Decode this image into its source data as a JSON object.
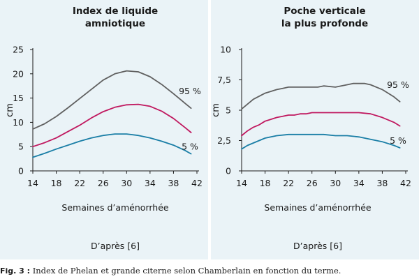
{
  "caption": {
    "figure_label": "Fig. 3 :",
    "text": "Index de Phelan et grande citerne selon Chamberlain en fonction du terme."
  },
  "colors": {
    "panel_bg": "#eaf3f7",
    "p95": "#606060",
    "p50": "#c0185f",
    "p5": "#1a7ea6"
  },
  "chart_data": [
    {
      "type": "line",
      "title_lines": [
        "Index de liquide",
        "amniotique"
      ],
      "xlabel": "Semaines d’aménorrhée",
      "ylabel": "cm",
      "source": "D’après [6]",
      "xlim": [
        14,
        42
      ],
      "ylim": [
        0,
        25
      ],
      "xticks": [
        14,
        18,
        22,
        26,
        30,
        34,
        38,
        42
      ],
      "yticks": [
        0,
        5,
        10,
        15,
        20,
        25
      ],
      "grid": false,
      "series": [
        {
          "name": "95 %",
          "color_key": "p95",
          "x": [
            14,
            16,
            18,
            20,
            22,
            24,
            26,
            28,
            30,
            32,
            34,
            36,
            38,
            40,
            41
          ],
          "y": [
            8.6,
            9.7,
            11.2,
            13.0,
            14.9,
            16.8,
            18.7,
            20.0,
            20.6,
            20.4,
            19.4,
            17.8,
            15.9,
            13.9,
            12.9
          ]
        },
        {
          "name": "",
          "color_key": "p50",
          "x": [
            14,
            16,
            18,
            20,
            22,
            24,
            26,
            28,
            30,
            32,
            34,
            36,
            38,
            40,
            41
          ],
          "y": [
            5.0,
            5.8,
            6.8,
            8.1,
            9.4,
            10.9,
            12.2,
            13.1,
            13.6,
            13.7,
            13.3,
            12.3,
            10.8,
            8.9,
            7.9
          ]
        },
        {
          "name": "5 %",
          "color_key": "p5",
          "x": [
            14,
            16,
            18,
            20,
            22,
            24,
            26,
            28,
            30,
            32,
            34,
            36,
            38,
            40,
            41
          ],
          "y": [
            2.8,
            3.6,
            4.5,
            5.3,
            6.1,
            6.8,
            7.3,
            7.6,
            7.6,
            7.3,
            6.8,
            6.1,
            5.3,
            4.2,
            3.5
          ]
        }
      ]
    },
    {
      "type": "line",
      "title_lines": [
        "Poche verticale",
        "la plus profonde"
      ],
      "xlabel": "Semaines d’aménorrhée",
      "ylabel": "cm",
      "source": "D’après [6]",
      "xlim": [
        14,
        42
      ],
      "ylim": [
        0,
        10
      ],
      "xticks": [
        14,
        18,
        22,
        26,
        30,
        34,
        38,
        42
      ],
      "yticks": [
        0,
        2.5,
        5,
        7.5,
        10
      ],
      "ytick_labels": [
        "0",
        "2,5",
        "5",
        "7,5",
        "10"
      ],
      "grid": false,
      "series": [
        {
          "name": "95 %",
          "color_key": "p95",
          "x": [
            14,
            16,
            18,
            20,
            21,
            22,
            24,
            26,
            27,
            28,
            30,
            32,
            33,
            34,
            35,
            36,
            38,
            40,
            41
          ],
          "y": [
            5.1,
            5.9,
            6.4,
            6.7,
            6.8,
            6.9,
            6.9,
            6.9,
            6.9,
            7.0,
            6.9,
            7.1,
            7.2,
            7.2,
            7.2,
            7.1,
            6.7,
            6.1,
            5.7
          ]
        },
        {
          "name": "",
          "color_key": "p50",
          "x": [
            14,
            15,
            16,
            17,
            18,
            20,
            21,
            22,
            23,
            24,
            25,
            26,
            28,
            30,
            32,
            34,
            36,
            38,
            40,
            41
          ],
          "y": [
            2.9,
            3.3,
            3.6,
            3.8,
            4.1,
            4.4,
            4.5,
            4.6,
            4.6,
            4.7,
            4.7,
            4.8,
            4.8,
            4.8,
            4.8,
            4.8,
            4.7,
            4.4,
            4.0,
            3.7
          ]
        },
        {
          "name": "5 %",
          "color_key": "p5",
          "x": [
            14,
            15,
            16,
            17,
            18,
            20,
            22,
            24,
            26,
            28,
            30,
            32,
            34,
            36,
            38,
            40,
            41
          ],
          "y": [
            1.8,
            2.1,
            2.3,
            2.5,
            2.7,
            2.9,
            3.0,
            3.0,
            3.0,
            3.0,
            2.9,
            2.9,
            2.8,
            2.6,
            2.4,
            2.1,
            1.9
          ]
        }
      ]
    }
  ]
}
